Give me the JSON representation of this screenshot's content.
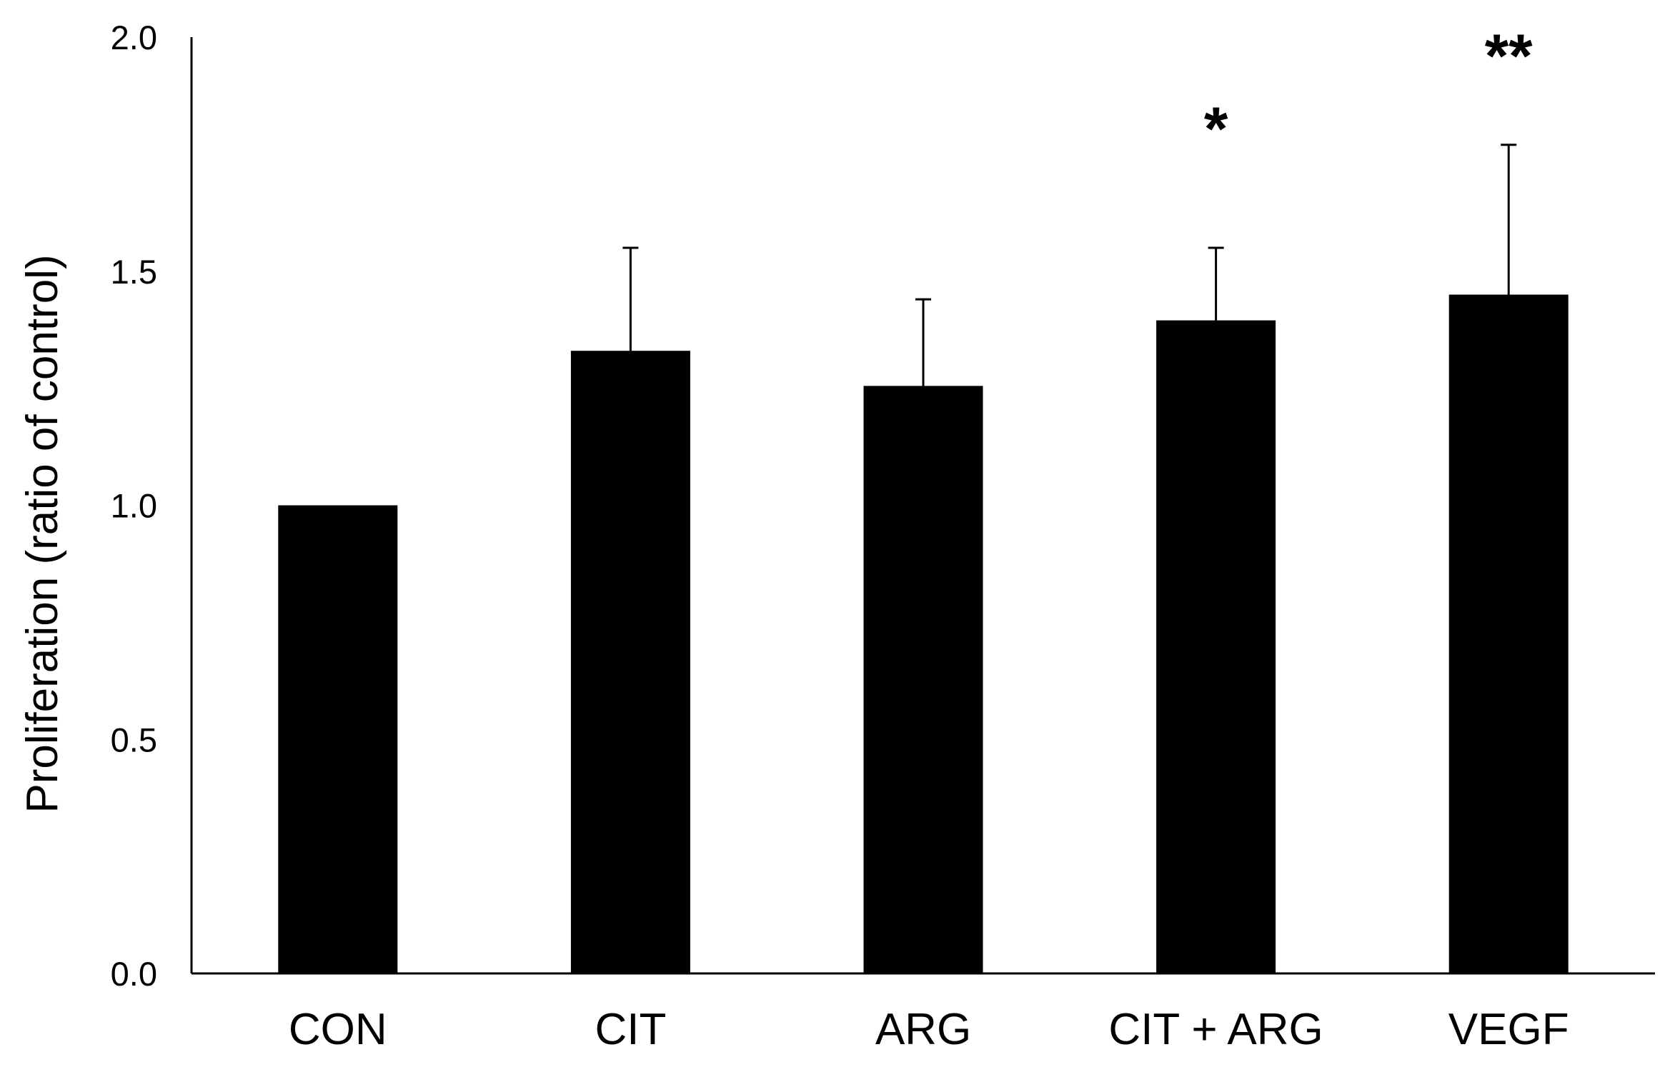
{
  "chart_data": {
    "type": "bar",
    "title": "",
    "xlabel": "",
    "ylabel": "Proliferation (ratio of control)",
    "ylim": [
      0,
      2.0
    ],
    "yticks": [
      "0.0",
      "0.5",
      "1.0",
      "1.5",
      "2.0"
    ],
    "ytick_values": [
      0,
      0.5,
      1.0,
      1.5,
      2.0
    ],
    "categories": [
      "CON",
      "CIT",
      "ARG",
      "CIT + ARG",
      "VEGF"
    ],
    "values": [
      1.0,
      1.33,
      1.255,
      1.395,
      1.45
    ],
    "errors": [
      0,
      0.22,
      0.185,
      0.155,
      0.32
    ],
    "significance": [
      "",
      "",
      "",
      "*",
      "**"
    ],
    "bar_color": "#000000",
    "grid": false,
    "legend": "none"
  }
}
